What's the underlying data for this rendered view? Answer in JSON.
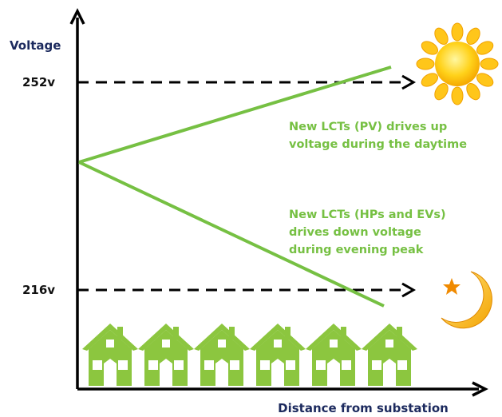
{
  "axes": {
    "y_label": "Voltage",
    "x_label": "Distance from substation"
  },
  "levels": [
    {
      "label": "252v"
    },
    {
      "label": "216v"
    }
  ],
  "annotations": [
    {
      "lines": [
        "New LCTs (PV) drives up",
        "voltage during the daytime"
      ]
    },
    {
      "lines": [
        "New LCTs (HPs and EVs)",
        "drives down voltage",
        "during evening peak"
      ]
    }
  ]
}
